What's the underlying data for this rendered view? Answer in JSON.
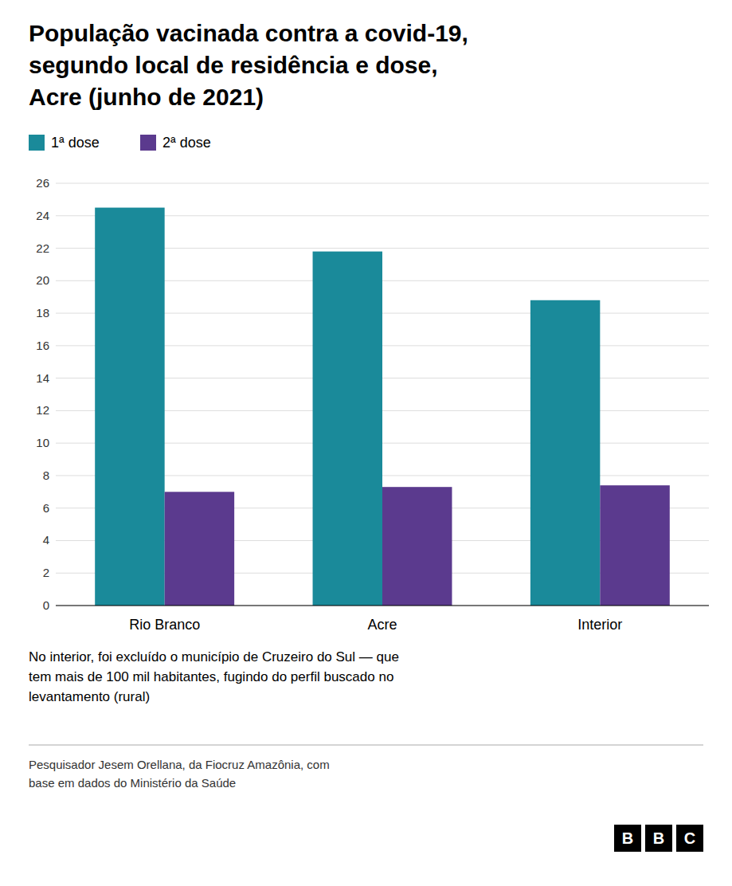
{
  "chart_data": {
    "type": "bar",
    "title": "População vacinada contra a covid-19,\nsegundo local de residência e dose,\nAcre (junho de 2021)",
    "categories": [
      "Rio Branco",
      "Acre",
      "Interior"
    ],
    "series": [
      {
        "name": "1ª dose",
        "color": "#1a8a9a",
        "values": [
          24.5,
          21.8,
          18.8
        ]
      },
      {
        "name": "2ª dose",
        "color": "#5b3a8e",
        "values": [
          7.0,
          7.3,
          7.4
        ]
      }
    ],
    "ylim": [
      0,
      26
    ],
    "yticks": [
      0,
      2,
      4,
      6,
      8,
      10,
      12,
      14,
      16,
      18,
      20,
      22,
      24,
      26
    ],
    "grid": true,
    "legend": "top-left",
    "annotations": [
      "No interior, foi excluído o município de Cruzeiro do Sul — que\ntem mais de 100 mil habitantes, fugindo do perfil buscado no\nlevantamento (rural)",
      "Pesquisador Jesem Orellana, da Fiocruz Amazônia, com\nbase em dados do Ministério da Saúde",
      "BBC"
    ]
  }
}
